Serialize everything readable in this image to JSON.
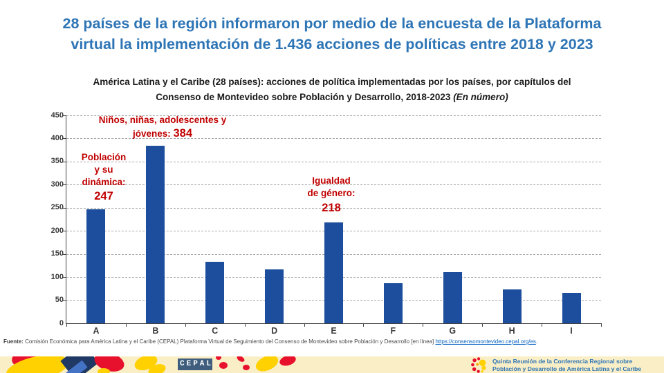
{
  "slide": {
    "title_line1": "28 países de la región informaron por medio de la encuesta de la Plataforma",
    "title_line2": "virtual la implementación de 1.436 acciones de políticas entre 2018 y 2023",
    "accent_color": "#2E75B6"
  },
  "chart_data": {
    "type": "bar",
    "title_line1": "América Latina y el Caribe (28 países): acciones de política implementadas por los países, por capítulos del",
    "title_line2": "Consenso de Montevideo sobre Población y Desarrollo, 2018-2023 ",
    "title_note": "(En número)",
    "categories": [
      "A",
      "B",
      "C",
      "D",
      "E",
      "F",
      "G",
      "H",
      "I"
    ],
    "values": [
      247,
      384,
      133,
      117,
      218,
      87,
      110,
      74,
      66
    ],
    "ylim": [
      0,
      450
    ],
    "yticks": [
      0,
      50,
      100,
      150,
      200,
      250,
      300,
      350,
      400,
      450
    ],
    "grid": "horizontal-dashed",
    "legend": "none",
    "bar_color": "#1C4E9D",
    "annotation_color": "#C00000",
    "annotations": [
      {
        "target": "A",
        "lines": [
          "Población",
          "y su",
          "dinámica:"
        ],
        "value": "247"
      },
      {
        "target": "B",
        "line1": "Niños, niñas, adolescentes y",
        "line2_prefix": "jóvenes: ",
        "value": "384"
      },
      {
        "target": "E",
        "lines": [
          "Igualdad",
          "de género:"
        ],
        "value": "218"
      }
    ]
  },
  "footer": {
    "label": "Fuente:",
    "text": " Comisión Económica para América Latina y el Caribe (CEPAL) Plataforma Virtual de Seguimiento del Consenso de Montevideo sobre Población y Desarrollo [en línea] ",
    "link": "https://consensomontevideo.cepal.org/es",
    "suffix": "."
  },
  "band": {
    "cepal_logo_text": "CEPAL",
    "conference_line1": "Quinta Reunión de la Conferencia Regional sobre",
    "conference_line2": "Población y Desarrollo de América Latina y el Caribe",
    "band_color": "#F9EEC6",
    "decor_colors": {
      "red": "#E8112D",
      "yellow": "#FFD100",
      "navy": "#1F3864",
      "blue": "#4472C4"
    }
  }
}
